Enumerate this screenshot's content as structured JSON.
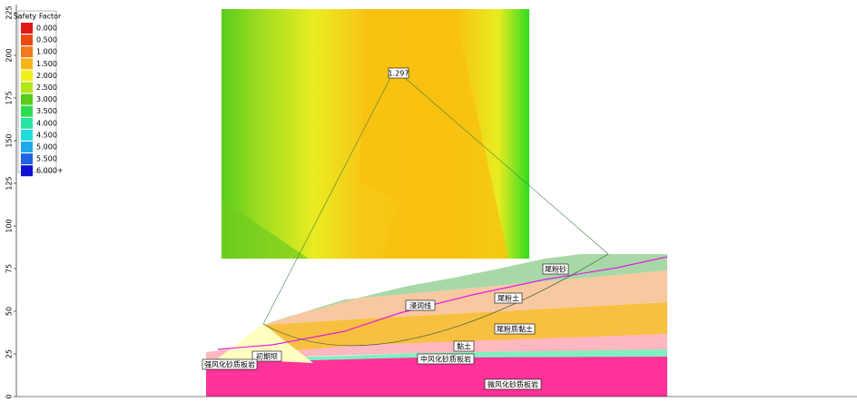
{
  "legend": {
    "title": "Safety Factor",
    "entries": [
      {
        "label": "0.000",
        "color": "#e01818"
      },
      {
        "label": "0.500",
        "color": "#ec4a14"
      },
      {
        "label": "1.000",
        "color": "#f07a1c"
      },
      {
        "label": "1.500",
        "color": "#f8b418"
      },
      {
        "label": "2.000",
        "color": "#f0f020"
      },
      {
        "label": "2.500",
        "color": "#b4e41c"
      },
      {
        "label": "3.000",
        "color": "#58cc1c"
      },
      {
        "label": "3.500",
        "color": "#2cdc50"
      },
      {
        "label": "4.000",
        "color": "#28e4a0"
      },
      {
        "label": "4.500",
        "color": "#24dcdc"
      },
      {
        "label": "5.000",
        "color": "#20a8e8"
      },
      {
        "label": "5.500",
        "color": "#2064e0"
      },
      {
        "label": "6.000+",
        "color": "#1010d0"
      }
    ]
  },
  "axis": {
    "ticks": [
      0,
      25,
      50,
      75,
      100,
      125,
      150,
      175,
      200,
      225
    ]
  },
  "grid": {
    "min_factor": "1.297"
  },
  "layers": {
    "top_sand": "尾粉砂",
    "silt": "尾粉土",
    "phreatic": "浸润线",
    "silty_clay": "尾粉质黏土",
    "clay": "黏土",
    "starter_dam": "初期坝",
    "moderate_slate": "中风化砂质板岩",
    "strong_slate": "强风化砂质板岩",
    "slight_slate": "微风化砂质板岩"
  }
}
